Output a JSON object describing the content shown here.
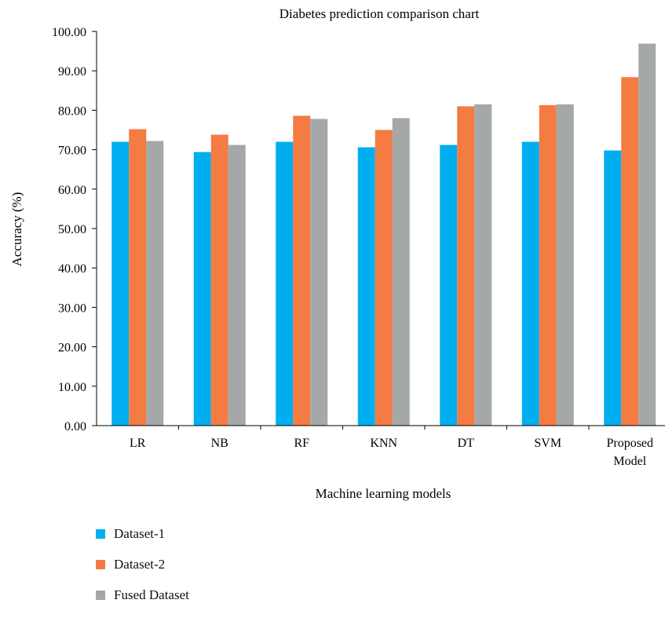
{
  "chart_data": {
    "type": "bar",
    "title": "Diabetes prediction comparison chart",
    "xlabel": "Machine learning models",
    "ylabel": "Accuracy (%)",
    "categories": [
      "LR",
      "NB",
      "RF",
      "KNN",
      "DT",
      "SVM",
      "Proposed Model"
    ],
    "category_lines": [
      [
        "LR"
      ],
      [
        "NB"
      ],
      [
        "RF"
      ],
      [
        "KNN"
      ],
      [
        "DT"
      ],
      [
        "SVM"
      ],
      [
        "Proposed",
        "Model"
      ]
    ],
    "ylim": [
      0,
      100
    ],
    "yticks": [
      "0.00",
      "10.00",
      "20.00",
      "30.00",
      "40.00",
      "50.00",
      "60.00",
      "70.00",
      "80.00",
      "90.00",
      "100.00"
    ],
    "grid": false,
    "legend_position": "bottom-left",
    "series": [
      {
        "name": "Dataset-1",
        "color": "#00AEEF",
        "values": [
          72.0,
          69.4,
          72.0,
          70.6,
          71.2,
          72.0,
          69.8
        ]
      },
      {
        "name": "Dataset-2",
        "color": "#F47B42",
        "values": [
          75.2,
          73.8,
          78.6,
          75.0,
          81.0,
          81.3,
          88.4
        ]
      },
      {
        "name": "Fused Dataset",
        "color": "#A5A8A8",
        "values": [
          72.2,
          71.2,
          77.8,
          78.0,
          81.5,
          81.5,
          96.9
        ]
      }
    ]
  }
}
